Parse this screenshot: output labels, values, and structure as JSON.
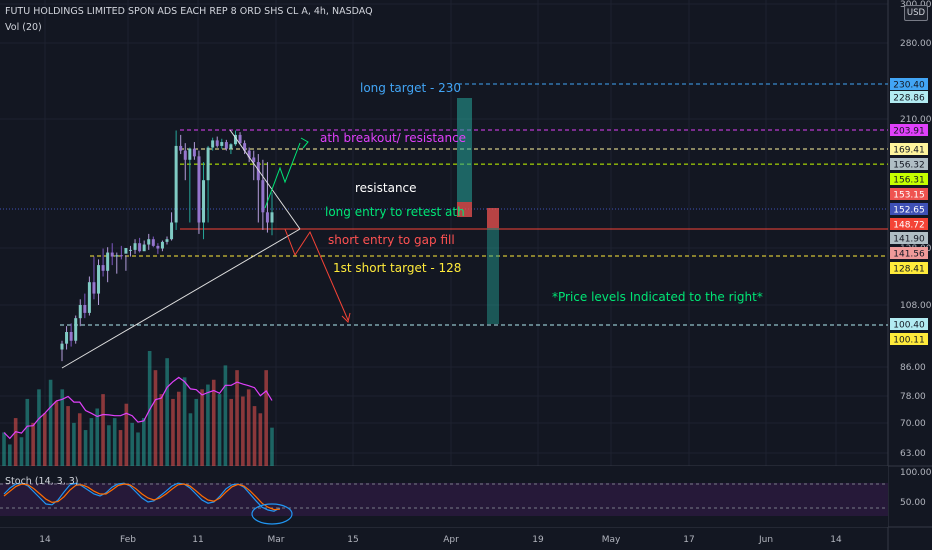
{
  "header": {
    "symbol_line": "FUTU HOLDINGS LIMITED SPON ADS EACH REP 8 ORD SHS CL A, 4h, NASDAQ",
    "volume_label": "Vol (20)",
    "currency_button": "USD",
    "stoch_label": "Stoch (14, 3, 3)"
  },
  "chart_data": {
    "type": "candlestick",
    "symbol": "FUTU",
    "interval": "4h",
    "exchange": "NASDAQ",
    "currency": "USD",
    "price_axis_ticks": [
      "300.00",
      "280.00",
      "210.00",
      "128.00",
      "108.00",
      "86.00",
      "78.00",
      "70.00",
      "63.00"
    ],
    "x_axis_ticks": [
      "14",
      "Feb",
      "11",
      "Mar",
      "15",
      "Apr",
      "19",
      "May",
      "17",
      "Jun",
      "14"
    ],
    "stoch_axis_ticks": [
      "100.00",
      "50.00"
    ],
    "price_labels": [
      {
        "value": "230.40",
        "color": "#42a5f5"
      },
      {
        "value": "228.86",
        "color": "#b2ebf2"
      },
      {
        "value": "203.91",
        "color": "#e040fb"
      },
      {
        "value": "169.41",
        "color": "#fff59d"
      },
      {
        "value": "156.32",
        "color": "#b0bec5"
      },
      {
        "value": "156.31",
        "color": "#c6ff00"
      },
      {
        "value": "153.15",
        "color": "#ef5350"
      },
      {
        "value": "152.65",
        "color": "#3f51b5"
      },
      {
        "value": "148.72",
        "color": "#f44336"
      },
      {
        "value": "141.90",
        "color": "#b0bec5"
      },
      {
        "value": "141.56",
        "color": "#ef9a9a"
      },
      {
        "value": "128.41",
        "color": "#ffeb3b"
      },
      {
        "value": "100.40",
        "color": "#b2ebf2"
      },
      {
        "value": "100.11",
        "color": "#ffeb3b"
      }
    ],
    "annotations": [
      {
        "text": "long target - 230",
        "color": "#42a5f5"
      },
      {
        "text": "ath breakout/ resistance",
        "color": "#e040fb"
      },
      {
        "text": "resistance",
        "color": "#ffffff"
      },
      {
        "text": "long entry to retest ath",
        "color": "#00e676"
      },
      {
        "text": "short entry to gap fill",
        "color": "#ff5252"
      },
      {
        "text": "1st short target - 128",
        "color": "#ffeb3b"
      },
      {
        "text": "*Price levels Indicated to the right*",
        "color": "#00e676"
      }
    ],
    "candles": [
      {
        "o": 92,
        "h": 95,
        "l": 88,
        "c": 94
      },
      {
        "o": 94,
        "h": 100,
        "l": 92,
        "c": 98
      },
      {
        "o": 98,
        "h": 101,
        "l": 93,
        "c": 95
      },
      {
        "o": 95,
        "h": 104,
        "l": 94,
        "c": 103
      },
      {
        "o": 103,
        "h": 110,
        "l": 100,
        "c": 108
      },
      {
        "o": 108,
        "h": 112,
        "l": 103,
        "c": 105
      },
      {
        "o": 105,
        "h": 118,
        "l": 104,
        "c": 116
      },
      {
        "o": 116,
        "h": 125,
        "l": 110,
        "c": 112
      },
      {
        "o": 112,
        "h": 124,
        "l": 108,
        "c": 122
      },
      {
        "o": 122,
        "h": 134,
        "l": 118,
        "c": 120
      },
      {
        "o": 120,
        "h": 135,
        "l": 116,
        "c": 131
      },
      {
        "o": 131,
        "h": 138,
        "l": 122,
        "c": 125
      },
      {
        "o": 125,
        "h": 131,
        "l": 119,
        "c": 129
      },
      {
        "o": 129,
        "h": 136,
        "l": 124,
        "c": 126
      },
      {
        "o": 126,
        "h": 129,
        "l": 120,
        "c": 128
      },
      {
        "o": 128,
        "h": 136,
        "l": 125,
        "c": 133
      },
      {
        "o": 133,
        "h": 141,
        "l": 130,
        "c": 138
      },
      {
        "o": 138,
        "h": 142,
        "l": 131,
        "c": 132
      },
      {
        "o": 132,
        "h": 140,
        "l": 128,
        "c": 137
      },
      {
        "o": 137,
        "h": 145,
        "l": 133,
        "c": 141
      },
      {
        "o": 141,
        "h": 143,
        "l": 135,
        "c": 136
      },
      {
        "o": 136,
        "h": 138,
        "l": 130,
        "c": 134
      },
      {
        "o": 134,
        "h": 140,
        "l": 132,
        "c": 139
      },
      {
        "o": 139,
        "h": 143,
        "l": 137,
        "c": 141
      },
      {
        "o": 141,
        "h": 152,
        "l": 140,
        "c": 150
      },
      {
        "o": 150,
        "h": 203,
        "l": 148,
        "c": 175
      },
      {
        "o": 175,
        "h": 195,
        "l": 165,
        "c": 168
      },
      {
        "o": 168,
        "h": 180,
        "l": 155,
        "c": 160
      },
      {
        "o": 160,
        "h": 172,
        "l": 150,
        "c": 170
      },
      {
        "o": 170,
        "h": 182,
        "l": 160,
        "c": 163
      },
      {
        "o": 163,
        "h": 168,
        "l": 145,
        "c": 150
      },
      {
        "o": 150,
        "h": 158,
        "l": 141,
        "c": 155
      },
      {
        "o": 155,
        "h": 175,
        "l": 150,
        "c": 172
      },
      {
        "o": 172,
        "h": 190,
        "l": 168,
        "c": 185
      },
      {
        "o": 185,
        "h": 192,
        "l": 172,
        "c": 175
      },
      {
        "o": 175,
        "h": 188,
        "l": 170,
        "c": 182
      },
      {
        "o": 182,
        "h": 186,
        "l": 168,
        "c": 170
      },
      {
        "o": 170,
        "h": 180,
        "l": 165,
        "c": 178
      },
      {
        "o": 178,
        "h": 203,
        "l": 175,
        "c": 195
      },
      {
        "o": 195,
        "h": 200,
        "l": 178,
        "c": 180
      },
      {
        "o": 180,
        "h": 185,
        "l": 165,
        "c": 168
      },
      {
        "o": 168,
        "h": 172,
        "l": 158,
        "c": 162
      },
      {
        "o": 162,
        "h": 168,
        "l": 155,
        "c": 158
      },
      {
        "o": 158,
        "h": 165,
        "l": 150,
        "c": 155
      },
      {
        "o": 155,
        "h": 160,
        "l": 148,
        "c": 152
      },
      {
        "o": 152,
        "h": 158,
        "l": 146,
        "c": 150
      },
      {
        "o": 150,
        "h": 154,
        "l": 144,
        "c": 152
      }
    ],
    "volumes": [
      14,
      9,
      20,
      12,
      28,
      18,
      32,
      22,
      36,
      27,
      32,
      25,
      18,
      22,
      15,
      20,
      24,
      30,
      17,
      20,
      15,
      26,
      18,
      14,
      20,
      48,
      40,
      30,
      45,
      28,
      31,
      37,
      22,
      28,
      32,
      34,
      36,
      30,
      42,
      28,
      40,
      29,
      32,
      25,
      22,
      40,
      16
    ],
    "stochastic": {
      "k": [
        55,
        70,
        80,
        82,
        75,
        60,
        45,
        30,
        28,
        40,
        60,
        78,
        82,
        75,
        65,
        55,
        50,
        58,
        72,
        80,
        82,
        75,
        60,
        45,
        35,
        38,
        50,
        62,
        75,
        82,
        80,
        70,
        55,
        40,
        32,
        35,
        50,
        68,
        78,
        80,
        72,
        55,
        38,
        22,
        15,
        12,
        20
      ],
      "d": [
        50,
        62,
        74,
        80,
        78,
        68,
        55,
        42,
        34,
        36,
        48,
        65,
        77,
        78,
        72,
        62,
        55,
        55,
        65,
        76,
        80,
        78,
        68,
        55,
        45,
        40,
        45,
        55,
        67,
        78,
        80,
        75,
        63,
        50,
        40,
        37,
        45,
        60,
        73,
        79,
        75,
        63,
        48,
        32,
        22,
        16,
        17
      ],
      "overbought": 80,
      "oversold": 20
    }
  }
}
